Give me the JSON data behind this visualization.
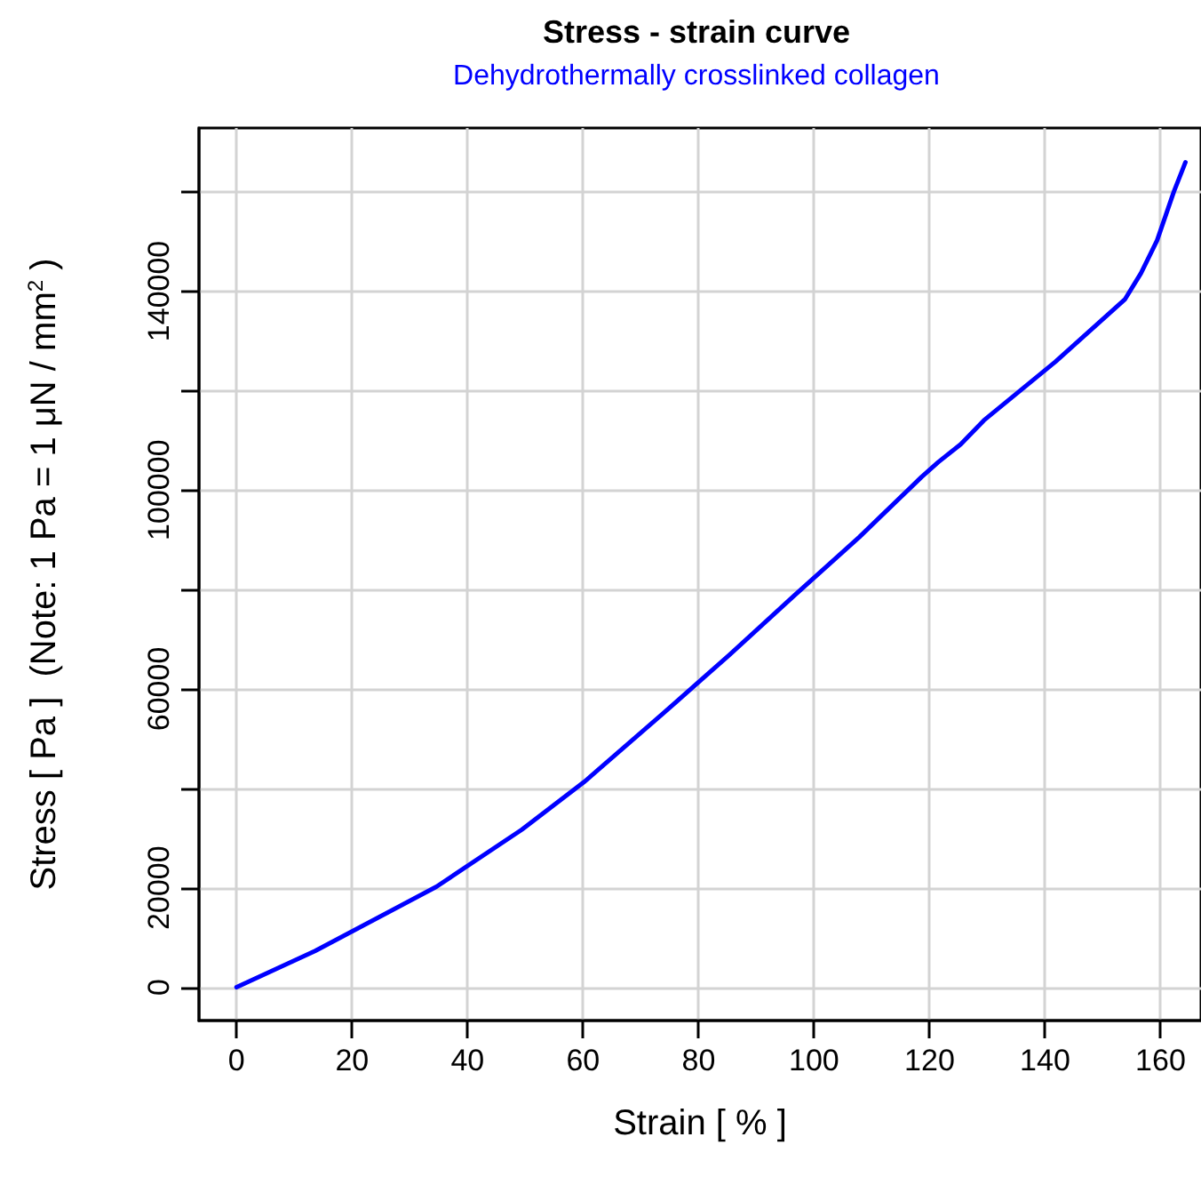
{
  "chart_data": {
    "type": "line",
    "title": "Stress - strain curve",
    "subtitle": "Dehydrothermally crosslinked collagen",
    "xlabel": "Strain [ % ]",
    "ylabel": "Stress [ Pa ]  (Note: 1 Pa = 1 μN / mm$^{2}$ )",
    "series": [
      {
        "color": "#0000ff",
        "x": [
          0,
          13.6,
          34.6,
          49.4,
          60.2,
          62.4,
          73.8,
          85.4,
          96.5,
          107.8,
          118.6,
          121.5,
          125.4,
          129.4,
          141.8,
          153.8,
          156.6,
          159.4,
          162.3,
          164.3
        ],
        "values": [
          0,
          7300,
          20200,
          31700,
          41300,
          43500,
          55000,
          66900,
          78700,
          90500,
          102600,
          105600,
          109200,
          114000,
          125800,
          138300,
          143600,
          150200,
          160000,
          165900
        ]
      }
    ],
    "xlim": [
      -6.5,
      167
    ],
    "ylim": [
      -6700,
      172800
    ],
    "xticks": [
      0,
      20,
      40,
      60,
      80,
      100,
      120,
      140,
      160
    ],
    "yticks": [
      0,
      20000,
      {
        "value": 40000,
        "label": null
      },
      60000,
      {
        "value": 80000,
        "label": null
      },
      100000,
      {
        "value": 120000,
        "label": null
      },
      140000,
      {
        "value": 160000,
        "label": null
      }
    ],
    "grid": true,
    "marker": "none",
    "line_style": "solid"
  }
}
